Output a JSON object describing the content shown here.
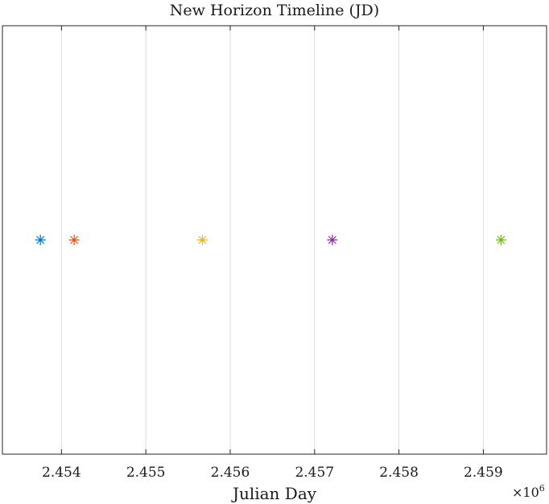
{
  "chart_data": {
    "type": "scatter",
    "title": "New Horizon Timeline (JD)",
    "xlabel": "Julian Day",
    "ylabel": "",
    "x_exponent_label": "×10",
    "x_exponent_power": "6",
    "x_scale_factor": 1000000,
    "xlim": [
      2453300,
      2459750
    ],
    "ylim": [
      0,
      1
    ],
    "grid": "x",
    "marker": "asterisk",
    "x_ticks": [
      2454000,
      2455000,
      2456000,
      2457000,
      2458000,
      2459000
    ],
    "x_tick_labels": [
      "2.454",
      "2.455",
      "2.456",
      "2.457",
      "2.458",
      "2.459"
    ],
    "series": [
      {
        "x": [
          2453750
        ],
        "y": [
          0.5
        ],
        "color": "#0072BD"
      },
      {
        "x": [
          2454150
        ],
        "y": [
          0.5
        ],
        "color": "#D95319"
      },
      {
        "x": [
          2455670
        ],
        "y": [
          0.5
        ],
        "color": "#EDB120"
      },
      {
        "x": [
          2457210
        ],
        "y": [
          0.5
        ],
        "color": "#7E2F8E"
      },
      {
        "x": [
          2459210
        ],
        "y": [
          0.5
        ],
        "color": "#77AC30"
      }
    ]
  }
}
